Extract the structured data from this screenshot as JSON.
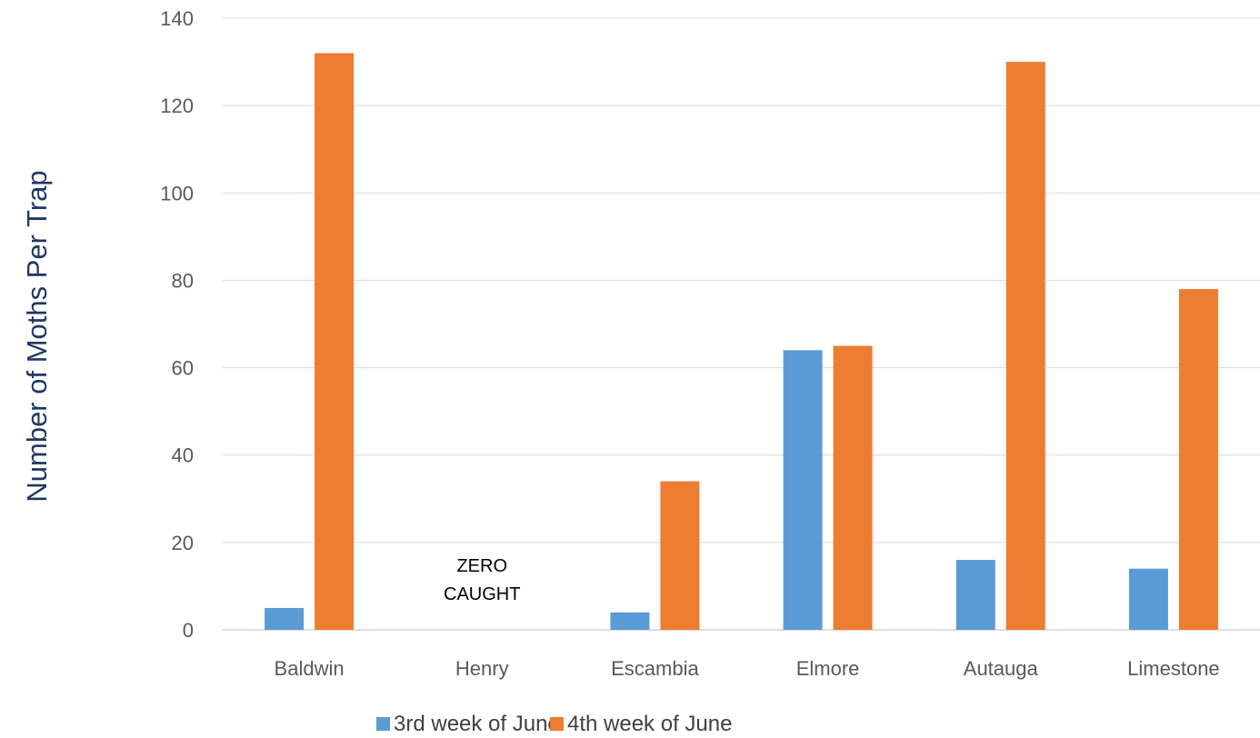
{
  "chart_data": {
    "type": "bar",
    "title": "",
    "xlabel": "",
    "ylabel": "Number of Moths Per Trap",
    "ylim": [
      0,
      140
    ],
    "yticks": [
      "0",
      "20",
      "40",
      "60",
      "80",
      "100",
      "120",
      "140"
    ],
    "categories": [
      "Baldwin",
      "Henry",
      "Escambia",
      "Elmore",
      "Autauga",
      "Limestone"
    ],
    "series": [
      {
        "name": "3rd week of June",
        "color": "#5b9bd5",
        "values": [
          5,
          0,
          4,
          64,
          16,
          14
        ]
      },
      {
        "name": "4th week of June",
        "color": "#ed7d31",
        "values": [
          132,
          0,
          34,
          65,
          130,
          78
        ]
      }
    ],
    "annotations": [
      {
        "category": "Henry",
        "lines": [
          "ZERO",
          "CAUGHT"
        ]
      }
    ],
    "grid": true,
    "legend_position": "bottom"
  }
}
